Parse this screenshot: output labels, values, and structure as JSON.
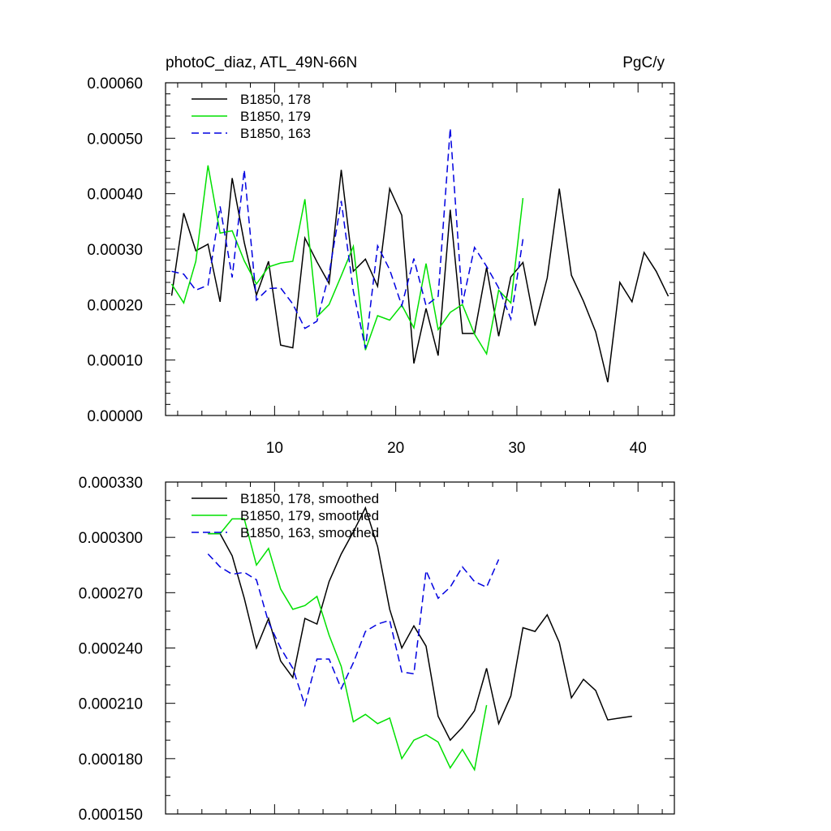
{
  "chart_data": [
    {
      "type": "line",
      "title_left": "photoC_diaz, ATL_49N-66N",
      "title_right": "PgC/y",
      "xlabel": "",
      "ylabel": "",
      "xlim": [
        1,
        43
      ],
      "ylim": [
        0,
        0.0006
      ],
      "x_major_ticks": [
        10,
        20,
        30,
        40
      ],
      "x_minor_step": 2,
      "y_major_ticks": [
        "0.00000",
        "0.00010",
        "0.00020",
        "0.00030",
        "0.00040",
        "0.00050",
        "0.00060"
      ],
      "y_major_values": [
        0,
        0.0001,
        0.0002,
        0.0003,
        0.0004,
        0.0005,
        0.0006
      ],
      "y_minor_step": 2e-05,
      "show_x_labels": true,
      "legend": "top-left",
      "series": [
        {
          "name": "B1850, 178",
          "color": "#000000",
          "dash": "solid",
          "x_start": 1.5,
          "values": [
            0.000216,
            0.000365,
            0.000297,
            0.000309,
            0.000205,
            0.000428,
            0.000312,
            0.000217,
            0.000278,
            0.000127,
            0.000122,
            0.00032,
            0.000277,
            0.000238,
            0.000443,
            0.00026,
            0.000282,
            0.000233,
            0.000409,
            0.000361,
            9.4e-05,
            0.000193,
            0.000108,
            0.000371,
            0.000148,
            0.000148,
            0.000267,
            0.000143,
            0.00025,
            0.000276,
            0.000162,
            0.000248,
            0.000409,
            0.000253,
            0.000206,
            0.000151,
            6e-05,
            0.00024,
            0.000205,
            0.000294,
            0.00026,
            0.000215
          ]
        },
        {
          "name": "B1850, 179",
          "color": "#00e000",
          "dash": "solid",
          "x_start": 1.5,
          "values": [
            0.000237,
            0.000203,
            0.000278,
            0.000451,
            0.000329,
            0.000333,
            0.000279,
            0.000237,
            0.000268,
            0.000275,
            0.000278,
            0.00039,
            0.000178,
            0.0002,
            0.000252,
            0.000305,
            0.000118,
            0.00018,
            0.000172,
            0.000199,
            0.000158,
            0.000274,
            0.000155,
            0.000186,
            0.0002,
            0.000147,
            0.000111,
            0.000226,
            0.000203,
            0.000392
          ]
        },
        {
          "name": "B1850, 163",
          "color": "#0000e0",
          "dash": "dashed",
          "x_start": 1.5,
          "values": [
            0.00026,
            0.000255,
            0.000226,
            0.000235,
            0.000377,
            0.000249,
            0.000443,
            0.000208,
            0.000229,
            0.00023,
            0.000201,
            0.000157,
            0.00017,
            0.000255,
            0.000387,
            0.000224,
            0.000121,
            0.000306,
            0.000263,
            0.000198,
            0.000283,
            0.000198,
            0.000215,
            0.000518,
            0.000202,
            0.000303,
            0.000269,
            0.00023,
            0.000174,
            0.000318
          ]
        }
      ]
    },
    {
      "type": "line",
      "title_left": "",
      "title_right": "",
      "xlabel": "",
      "ylabel": "",
      "xlim": [
        1,
        43
      ],
      "ylim": [
        0.00015,
        0.00033
      ],
      "x_major_ticks": [
        10,
        20,
        30,
        40
      ],
      "x_minor_step": 2,
      "y_major_ticks": [
        "0.000150",
        "0.000180",
        "0.000210",
        "0.000240",
        "0.000270",
        "0.000300",
        "0.000330"
      ],
      "y_major_values": [
        0.00015,
        0.00018,
        0.00021,
        0.00024,
        0.00027,
        0.0003,
        0.00033
      ],
      "y_minor_step": 1e-05,
      "show_x_labels": false,
      "legend": "top-left",
      "series": [
        {
          "name": "B1850, 178, smoothed",
          "color": "#000000",
          "dash": "solid",
          "x_start": 4.5,
          "values": [
            0.000302,
            0.000302,
            0.00029,
            0.000267,
            0.00024,
            0.000256,
            0.000233,
            0.000224,
            0.000256,
            0.000253,
            0.000276,
            0.000291,
            0.000303,
            0.000316,
            0.000295,
            0.000261,
            0.00024,
            0.000252,
            0.000241,
            0.000203,
            0.00019,
            0.000197,
            0.000206,
            0.000229,
            0.000199,
            0.000214,
            0.000251,
            0.000249,
            0.000258,
            0.000243,
            0.000213,
            0.000223,
            0.000217,
            0.000201,
            0.000202,
            0.000203
          ]
        },
        {
          "name": "B1850, 179, smoothed",
          "color": "#00e000",
          "dash": "solid",
          "x_start": 4.5,
          "values": [
            0.000302,
            0.000302,
            0.00031,
            0.00031,
            0.000285,
            0.000294,
            0.000272,
            0.000261,
            0.000263,
            0.000268,
            0.000247,
            0.00023,
            0.0002,
            0.000204,
            0.000199,
            0.000202,
            0.00018,
            0.00019,
            0.000193,
            0.000189,
            0.000175,
            0.000185,
            0.000174,
            0.000209
          ]
        },
        {
          "name": "B1850, 163, smoothed",
          "color": "#0000e0",
          "dash": "dashed",
          "x_start": 4.5,
          "values": [
            0.000291,
            0.000284,
            0.00028,
            0.000281,
            0.000277,
            0.000254,
            0.00024,
            0.000229,
            0.000209,
            0.000234,
            0.000234,
            0.000218,
            0.000232,
            0.000249,
            0.000253,
            0.000255,
            0.000227,
            0.000226,
            0.000282,
            0.000267,
            0.000273,
            0.000284,
            0.000276,
            0.000273,
            0.000288
          ]
        }
      ]
    }
  ]
}
